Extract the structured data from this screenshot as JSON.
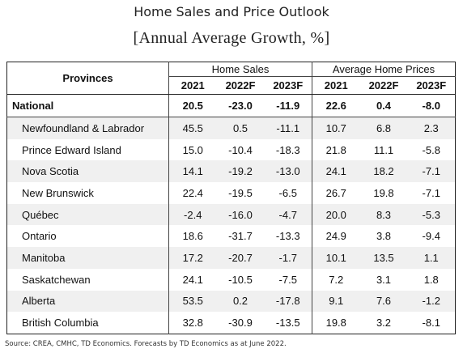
{
  "title": "Home Sales and Price Outlook",
  "subtitle": "[Annual Average Growth, %]",
  "table": {
    "provinces_header": "Provinces",
    "group_home_sales": "Home Sales",
    "group_prices": "Average Home Prices",
    "years": [
      "2021",
      "2022F",
      "2023F",
      "2021",
      "2022F",
      "2023F"
    ],
    "national": {
      "name": "National",
      "values": [
        "20.5",
        "-23.0",
        "-11.9",
        "22.6",
        "0.4",
        "-8.0"
      ]
    },
    "rows": [
      {
        "name": "Newfoundland & Labrador",
        "values": [
          "45.5",
          "0.5",
          "-11.1",
          "10.7",
          "6.8",
          "2.3"
        ]
      },
      {
        "name": "Prince Edward Island",
        "values": [
          "15.0",
          "-10.4",
          "-18.3",
          "21.8",
          "11.1",
          "-5.8"
        ]
      },
      {
        "name": "Nova Scotia",
        "values": [
          "14.1",
          "-19.2",
          "-13.0",
          "24.1",
          "18.2",
          "-7.1"
        ]
      },
      {
        "name": "New Brunswick",
        "values": [
          "22.4",
          "-19.5",
          "-6.5",
          "26.7",
          "19.8",
          "-7.1"
        ]
      },
      {
        "name": "Québec",
        "values": [
          "-2.4",
          "-16.0",
          "-4.7",
          "20.0",
          "8.3",
          "-5.3"
        ]
      },
      {
        "name": "Ontario",
        "values": [
          "18.6",
          "-31.7",
          "-13.3",
          "24.9",
          "3.8",
          "-9.4"
        ]
      },
      {
        "name": "Manitoba",
        "values": [
          "17.2",
          "-20.7",
          "-1.7",
          "10.1",
          "13.5",
          "1.1"
        ]
      },
      {
        "name": "Saskatchewan",
        "values": [
          "24.1",
          "-10.5",
          "-7.5",
          "7.2",
          "3.1",
          "1.8"
        ]
      },
      {
        "name": "Alberta",
        "values": [
          "53.5",
          "0.2",
          "-17.8",
          "9.1",
          "7.6",
          "-1.2"
        ]
      },
      {
        "name": "British Columbia",
        "values": [
          "32.8",
          "-30.9",
          "-13.5",
          "19.8",
          "3.2",
          "-8.1"
        ]
      }
    ]
  },
  "source": "Source: CREA, CMHC, TD Economics. Forecasts by TD Economics as at June 2022."
}
